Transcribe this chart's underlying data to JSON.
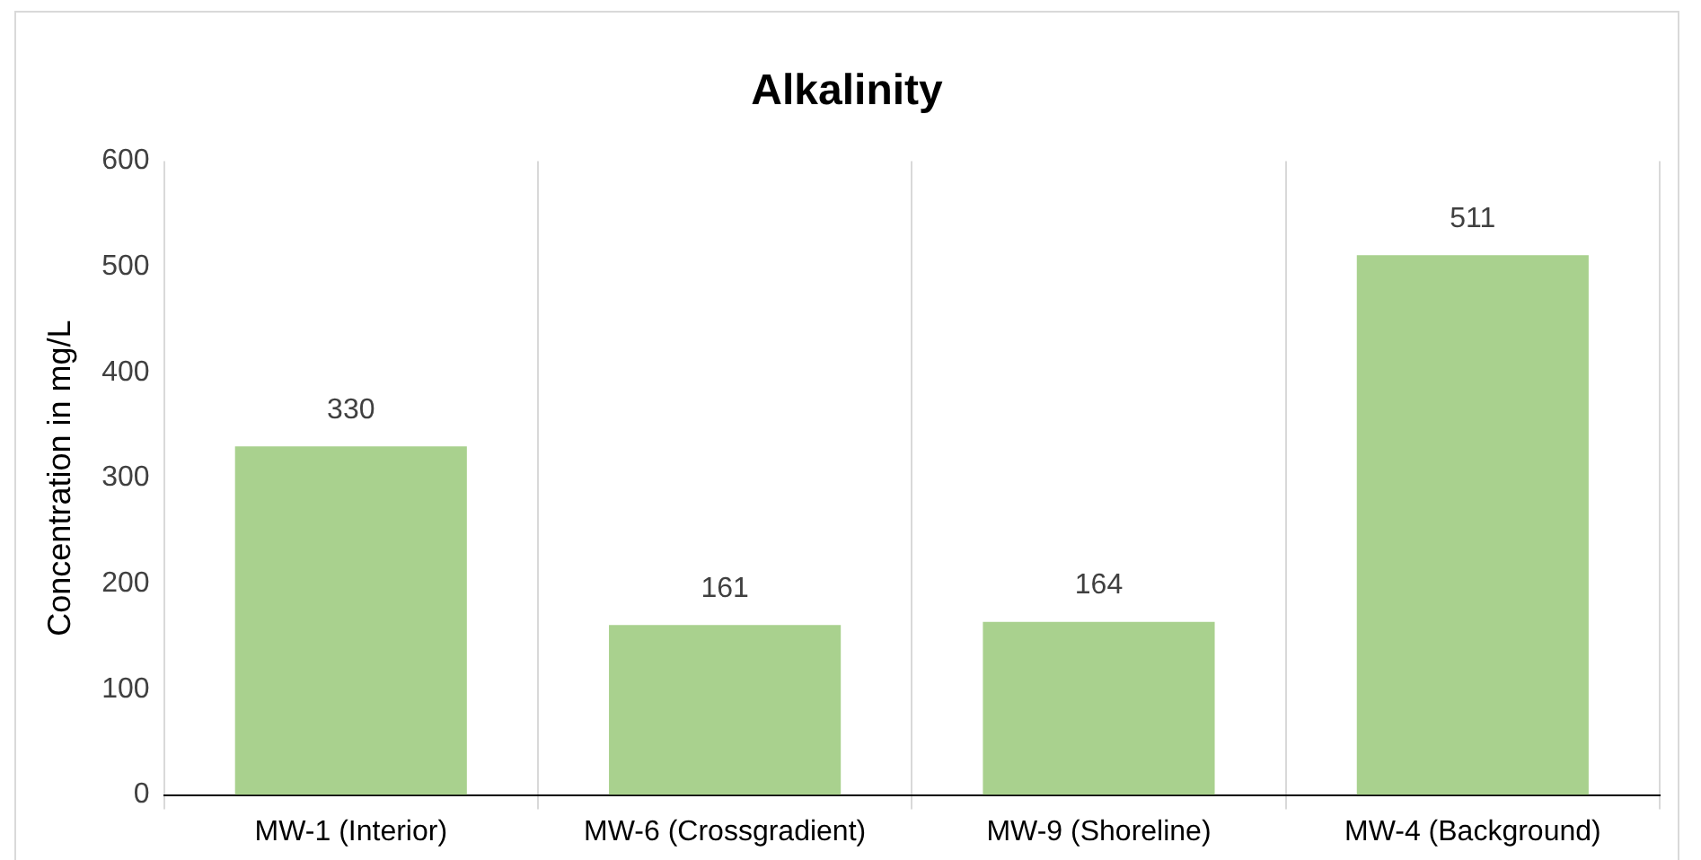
{
  "chart_data": {
    "type": "bar",
    "title": "Alkalinity",
    "ylabel": "Concentration in mg/L",
    "categories": [
      "MW-1 (Interior)",
      "MW-6 (Crossgradient)",
      "MW-9 (Shoreline)",
      "MW-4 (Background)"
    ],
    "values": [
      330,
      161,
      164,
      511
    ],
    "color": "#a9d18e",
    "ylim": [
      0,
      600
    ],
    "yticks": [
      0,
      100,
      200,
      300,
      400,
      500,
      600
    ],
    "grid": "x",
    "data_labels": true,
    "legend": false
  }
}
